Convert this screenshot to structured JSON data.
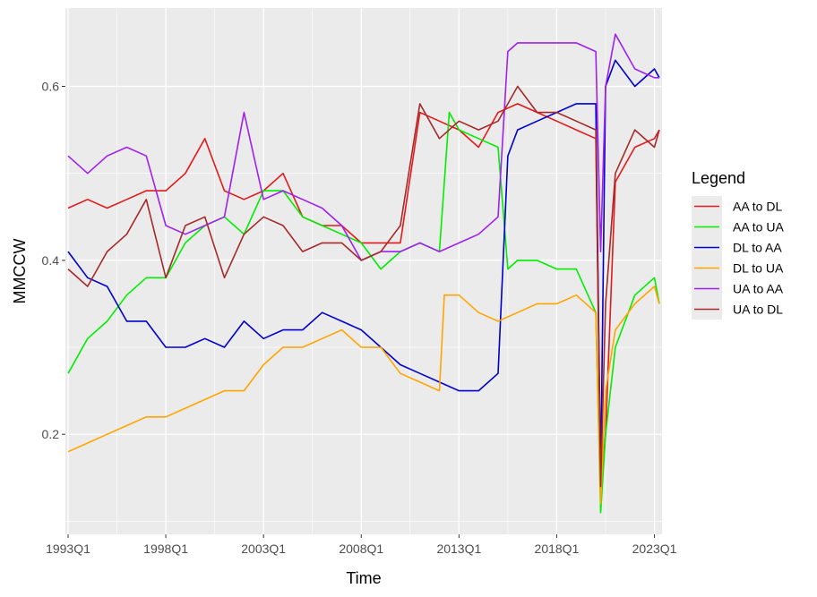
{
  "chart_data": {
    "type": "line",
    "xlabel": "Time",
    "ylabel": "MMCCW",
    "xlim": [
      1993.0,
      2023.25
    ],
    "ylim": [
      0.085,
      0.69
    ],
    "x_ticks": [
      {
        "value": 1993.0,
        "label": "1993Q1"
      },
      {
        "value": 1998.0,
        "label": "1998Q1"
      },
      {
        "value": 2003.0,
        "label": "2003Q1"
      },
      {
        "value": 2008.0,
        "label": "2008Q1"
      },
      {
        "value": 2013.0,
        "label": "2013Q1"
      },
      {
        "value": 2018.0,
        "label": "2018Q1"
      },
      {
        "value": 2023.0,
        "label": "2023Q1"
      }
    ],
    "y_ticks": [
      {
        "value": 0.2,
        "label": "0.2"
      },
      {
        "value": 0.4,
        "label": "0.4"
      },
      {
        "value": 0.6,
        "label": "0.6"
      }
    ],
    "grid": true,
    "background": "#ebebeb",
    "legend": {
      "title": "Legend",
      "position": "right"
    },
    "series": [
      {
        "name": "AA to DL",
        "color": "#e31a1c",
        "x": [
          1993.0,
          1994.0,
          1995.0,
          1996.0,
          1997.0,
          1998.0,
          1999.0,
          2000.0,
          2001.0,
          2002.0,
          2003.0,
          2004.0,
          2005.0,
          2006.0,
          2007.0,
          2008.0,
          2009.0,
          2010.0,
          2011.0,
          2012.0,
          2013.0,
          2014.0,
          2015.0,
          2016.0,
          2017.0,
          2018.0,
          2019.0,
          2020.0,
          2020.25,
          2020.5,
          2021.0,
          2022.0,
          2023.0,
          2023.25
        ],
        "y": [
          0.46,
          0.47,
          0.46,
          0.47,
          0.48,
          0.48,
          0.5,
          0.54,
          0.48,
          0.47,
          0.48,
          0.5,
          0.45,
          0.44,
          0.44,
          0.42,
          0.42,
          0.42,
          0.57,
          0.56,
          0.55,
          0.53,
          0.57,
          0.58,
          0.57,
          0.56,
          0.55,
          0.54,
          0.14,
          0.2,
          0.49,
          0.53,
          0.54,
          0.55
        ]
      },
      {
        "name": "AA to UA",
        "color": "#00ee00",
        "x": [
          1993.0,
          1994.0,
          1995.0,
          1996.0,
          1997.0,
          1998.0,
          1999.0,
          2000.0,
          2001.0,
          2002.0,
          2003.0,
          2004.0,
          2005.0,
          2006.0,
          2007.0,
          2008.0,
          2009.0,
          2010.0,
          2011.0,
          2012.0,
          2012.5,
          2013.0,
          2014.0,
          2015.0,
          2015.5,
          2016.0,
          2017.0,
          2018.0,
          2019.0,
          2020.0,
          2020.25,
          2020.5,
          2021.0,
          2022.0,
          2023.0,
          2023.25
        ],
        "y": [
          0.27,
          0.31,
          0.33,
          0.36,
          0.38,
          0.38,
          0.42,
          0.44,
          0.45,
          0.43,
          0.48,
          0.48,
          0.45,
          0.44,
          0.43,
          0.42,
          0.39,
          0.41,
          0.42,
          0.41,
          0.57,
          0.55,
          0.54,
          0.53,
          0.39,
          0.4,
          0.4,
          0.39,
          0.39,
          0.34,
          0.11,
          0.2,
          0.3,
          0.36,
          0.38,
          0.35
        ]
      },
      {
        "name": "DL to AA",
        "color": "#0000cd",
        "x": [
          1993.0,
          1994.0,
          1995.0,
          1996.0,
          1997.0,
          1998.0,
          1999.0,
          2000.0,
          2001.0,
          2002.0,
          2003.0,
          2004.0,
          2005.0,
          2006.0,
          2007.0,
          2008.0,
          2009.0,
          2010.0,
          2011.0,
          2012.0,
          2013.0,
          2014.0,
          2015.0,
          2015.5,
          2016.0,
          2017.0,
          2018.0,
          2019.0,
          2020.0,
          2020.25,
          2020.5,
          2021.0,
          2022.0,
          2023.0,
          2023.25
        ],
        "y": [
          0.41,
          0.38,
          0.37,
          0.33,
          0.33,
          0.3,
          0.3,
          0.31,
          0.3,
          0.33,
          0.31,
          0.32,
          0.32,
          0.34,
          0.33,
          0.32,
          0.3,
          0.28,
          0.27,
          0.26,
          0.25,
          0.25,
          0.27,
          0.52,
          0.55,
          0.56,
          0.57,
          0.58,
          0.58,
          0.15,
          0.6,
          0.63,
          0.6,
          0.62,
          0.61
        ]
      },
      {
        "name": "DL to UA",
        "color": "#ffa500",
        "x": [
          1993.0,
          1994.0,
          1995.0,
          1996.0,
          1997.0,
          1998.0,
          1999.0,
          2000.0,
          2001.0,
          2002.0,
          2003.0,
          2004.0,
          2005.0,
          2006.0,
          2007.0,
          2008.0,
          2009.0,
          2010.0,
          2011.0,
          2012.0,
          2012.25,
          2013.0,
          2014.0,
          2015.0,
          2016.0,
          2017.0,
          2018.0,
          2019.0,
          2020.0,
          2020.25,
          2020.5,
          2021.0,
          2022.0,
          2023.0,
          2023.25
        ],
        "y": [
          0.18,
          0.19,
          0.2,
          0.21,
          0.22,
          0.22,
          0.23,
          0.24,
          0.25,
          0.25,
          0.28,
          0.3,
          0.3,
          0.31,
          0.32,
          0.3,
          0.3,
          0.27,
          0.26,
          0.25,
          0.36,
          0.36,
          0.34,
          0.33,
          0.34,
          0.35,
          0.35,
          0.36,
          0.34,
          0.12,
          0.25,
          0.32,
          0.35,
          0.37,
          0.35
        ]
      },
      {
        "name": "UA to AA",
        "color": "#a020f0",
        "x": [
          1993.0,
          1994.0,
          1995.0,
          1996.0,
          1997.0,
          1998.0,
          1999.0,
          2000.0,
          2001.0,
          2002.0,
          2003.0,
          2004.0,
          2005.0,
          2006.0,
          2007.0,
          2008.0,
          2009.0,
          2010.0,
          2011.0,
          2012.0,
          2013.0,
          2014.0,
          2015.0,
          2015.5,
          2016.0,
          2017.0,
          2018.0,
          2019.0,
          2020.0,
          2020.25,
          2020.5,
          2021.0,
          2022.0,
          2023.0,
          2023.25
        ],
        "y": [
          0.52,
          0.5,
          0.52,
          0.53,
          0.52,
          0.44,
          0.43,
          0.44,
          0.45,
          0.57,
          0.47,
          0.48,
          0.47,
          0.46,
          0.44,
          0.4,
          0.41,
          0.41,
          0.42,
          0.41,
          0.42,
          0.43,
          0.45,
          0.64,
          0.65,
          0.65,
          0.65,
          0.65,
          0.64,
          0.41,
          0.6,
          0.66,
          0.62,
          0.61,
          0.61
        ]
      },
      {
        "name": "UA to DL",
        "color": "#a52a2a",
        "x": [
          1993.0,
          1994.0,
          1995.0,
          1996.0,
          1997.0,
          1998.0,
          1999.0,
          2000.0,
          2001.0,
          2002.0,
          2003.0,
          2004.0,
          2005.0,
          2006.0,
          2007.0,
          2008.0,
          2009.0,
          2010.0,
          2011.0,
          2012.0,
          2013.0,
          2014.0,
          2015.0,
          2016.0,
          2017.0,
          2018.0,
          2019.0,
          2020.0,
          2020.25,
          2020.5,
          2021.0,
          2022.0,
          2023.0,
          2023.25
        ],
        "y": [
          0.39,
          0.37,
          0.41,
          0.43,
          0.47,
          0.38,
          0.44,
          0.45,
          0.38,
          0.43,
          0.45,
          0.44,
          0.41,
          0.42,
          0.42,
          0.4,
          0.41,
          0.44,
          0.58,
          0.54,
          0.56,
          0.55,
          0.56,
          0.6,
          0.57,
          0.57,
          0.56,
          0.55,
          0.14,
          0.35,
          0.5,
          0.55,
          0.53,
          0.55
        ]
      }
    ]
  }
}
